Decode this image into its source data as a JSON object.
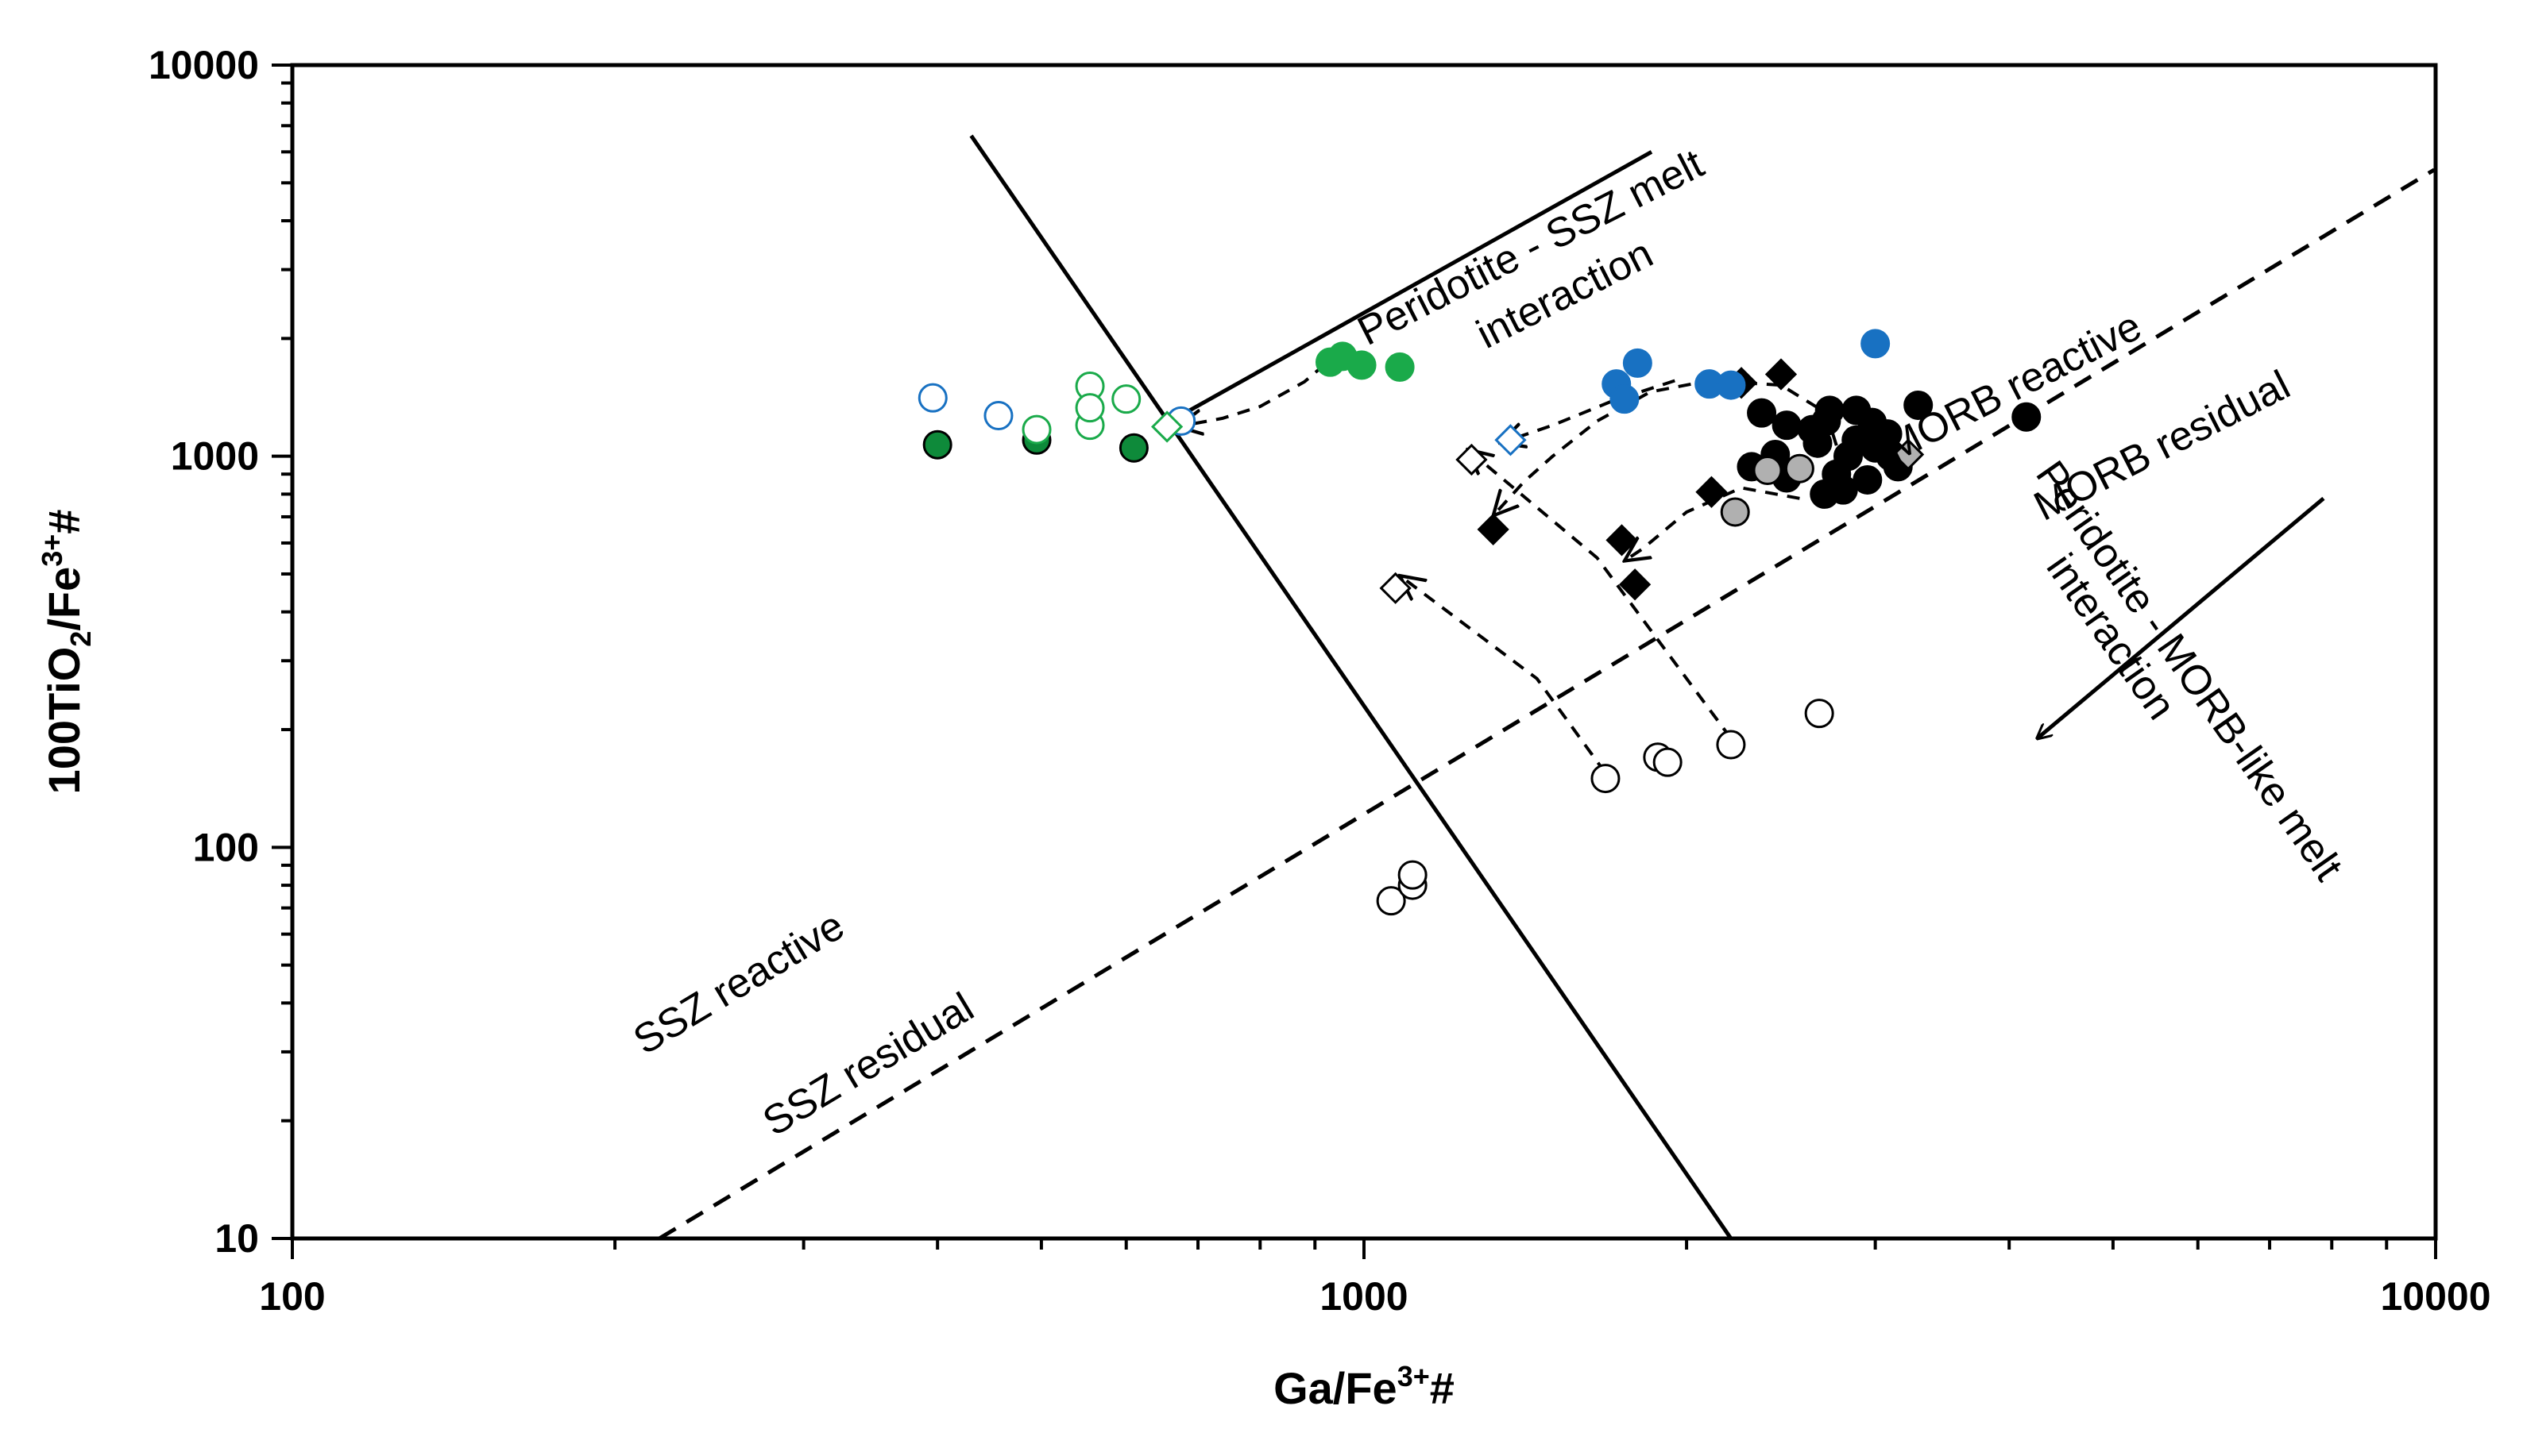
{
  "chart_data": {
    "type": "scatter",
    "xscale": "log",
    "yscale": "log",
    "xlim": [
      100,
      10000
    ],
    "ylim": [
      10,
      10000
    ],
    "xlabel": {
      "base": "Ga/Fe",
      "sup": "3+",
      "tail": "#"
    },
    "ylabel": {
      "base": "100TiO",
      "sub": "2",
      "mid": "/Fe",
      "sup": "3+",
      "tail": "#"
    },
    "xticks": [
      {
        "value": 100,
        "label": "100"
      },
      {
        "value": 1000,
        "label": "1000"
      },
      {
        "value": 10000,
        "label": "10000"
      }
    ],
    "yticks": [
      {
        "value": 10,
        "label": "10"
      },
      {
        "value": 100,
        "label": "100"
      },
      {
        "value": 1000,
        "label": "1000"
      },
      {
        "value": 10000,
        "label": "10000"
      }
    ],
    "colors": {
      "black": "#000000",
      "green": "#1aaa4a",
      "dark_green": "#0e8a3a",
      "blue": "#1871c2",
      "gray": "#b0b0b0",
      "white": "#ffffff"
    },
    "boundaries": [
      {
        "name": "ssz-morb-boundary",
        "style": "solid",
        "x": [
          430,
          2200
        ],
        "y": [
          6600,
          10
        ]
      },
      {
        "name": "reactive-residual-boundary",
        "style": "dashed",
        "x": [
          220,
          9970
        ],
        "y": [
          10,
          5400
        ]
      }
    ],
    "arrows": [
      {
        "name": "ssz-melt-interaction-arrow",
        "style": "solid",
        "x": [
          1855,
          660
        ],
        "y": [
          6000,
          1230
        ]
      },
      {
        "name": "morb-melt-interaction-arrow",
        "style": "solid",
        "x": [
          7860,
          4250
        ],
        "y": [
          780,
          190
        ]
      }
    ],
    "paths": [
      {
        "name": "green-to-open-diamond-path",
        "points": [
          [
            920,
            1720
          ],
          [
            880,
            1550
          ],
          [
            800,
            1340
          ],
          [
            738,
            1250
          ],
          [
            670,
            1190
          ]
        ]
      },
      {
        "name": "blue-to-blue-diamond-path",
        "points": [
          [
            1950,
            1560
          ],
          [
            1700,
            1380
          ],
          [
            1500,
            1200
          ],
          [
            1340,
            1080
          ]
        ]
      },
      {
        "name": "upper-curved-path",
        "points": [
          [
            2800,
            940
          ],
          [
            2700,
            1290
          ],
          [
            2450,
            1520
          ],
          [
            2100,
            1560
          ],
          [
            1850,
            1460
          ],
          [
            1650,
            1230
          ],
          [
            1500,
            1000
          ],
          [
            1410,
            860
          ],
          [
            1320,
            705
          ]
        ]
      },
      {
        "name": "inner-curved-path",
        "points": [
          [
            2550,
            780
          ],
          [
            2250,
            830
          ],
          [
            2000,
            720
          ],
          [
            1820,
            580
          ],
          [
            1750,
            540
          ]
        ]
      },
      {
        "name": "open-circle-to-diamond-path",
        "points": [
          [
            2200,
            190
          ],
          [
            1650,
            550
          ],
          [
            1250,
            1040
          ]
        ]
      },
      {
        "name": "lower-open-circle-path",
        "points": [
          [
            1680,
            155
          ],
          [
            1450,
            270
          ],
          [
            1080,
            495
          ]
        ]
      }
    ],
    "series": [
      {
        "name": "black filled circles",
        "marker": "circle",
        "fill": "#000000",
        "stroke": "#000000",
        "points": [
          [
            2350,
            1290
          ],
          [
            2480,
            1200
          ],
          [
            2300,
            940
          ],
          [
            2480,
            880
          ],
          [
            2420,
            1010
          ],
          [
            2650,
            1080
          ],
          [
            2700,
            1230
          ],
          [
            2720,
            1310
          ],
          [
            2880,
            1310
          ],
          [
            2880,
            1100
          ],
          [
            2830,
            1000
          ],
          [
            2980,
            1220
          ],
          [
            3000,
            1050
          ],
          [
            3080,
            1140
          ],
          [
            3150,
            940
          ],
          [
            3290,
            1350
          ],
          [
            2800,
            820
          ],
          [
            2760,
            900
          ],
          [
            2690,
            800
          ],
          [
            2950,
            870
          ],
          [
            2620,
            1170
          ],
          [
            3100,
            1000
          ],
          [
            4150,
            1260
          ]
        ]
      },
      {
        "name": "black filled diamonds",
        "marker": "diamond",
        "fill": "#000000",
        "stroke": "#000000",
        "points": [
          [
            2450,
            1620
          ],
          [
            2250,
            1540
          ],
          [
            1320,
            650
          ],
          [
            1740,
            610
          ],
          [
            1790,
            470
          ],
          [
            2110,
            810
          ]
        ]
      },
      {
        "name": "gray filled circles",
        "marker": "circle",
        "fill": "#b0b0b0",
        "stroke": "#000000",
        "points": [
          [
            2380,
            920
          ],
          [
            2220,
            720
          ],
          [
            2550,
            930
          ]
        ]
      },
      {
        "name": "gray filled diamonds",
        "marker": "diamond",
        "fill": "#b0b0b0",
        "stroke": "#000000",
        "points": [
          [
            3220,
            1010
          ]
        ]
      },
      {
        "name": "open circles",
        "marker": "circle",
        "fill": "#ffffff",
        "stroke": "#000000",
        "points": [
          [
            2200,
            183
          ],
          [
            2660,
            220
          ],
          [
            1680,
            150
          ],
          [
            1880,
            170
          ],
          [
            1920,
            165
          ],
          [
            1060,
            73
          ],
          [
            1110,
            80
          ],
          [
            1110,
            85
          ]
        ]
      },
      {
        "name": "open diamonds",
        "marker": "diamond",
        "fill": "#ffffff",
        "stroke": "#000000",
        "points": [
          [
            1260,
            980
          ],
          [
            1070,
            460
          ]
        ]
      },
      {
        "name": "blue filled circles",
        "marker": "circle",
        "fill": "#1871c2",
        "stroke": "#1871c2",
        "points": [
          [
            1720,
            1530
          ],
          [
            1750,
            1400
          ],
          [
            1800,
            1730
          ],
          [
            2100,
            1530
          ],
          [
            2200,
            1520
          ],
          [
            3000,
            1940
          ]
        ]
      },
      {
        "name": "blue open circles",
        "marker": "circle",
        "fill": "#ffffff",
        "stroke": "#1871c2",
        "points": [
          [
            396,
            1410
          ],
          [
            456,
            1270
          ],
          [
            675,
            1230
          ]
        ]
      },
      {
        "name": "blue open diamonds",
        "marker": "diamond",
        "fill": "#ffffff",
        "stroke": "#1871c2",
        "points": [
          [
            1370,
            1100
          ]
        ]
      },
      {
        "name": "green filled circles",
        "marker": "circle",
        "fill": "#1aaa4a",
        "stroke": "#1aaa4a",
        "points": [
          [
            930,
            1740
          ],
          [
            955,
            1800
          ],
          [
            995,
            1710
          ],
          [
            1080,
            1690
          ]
        ]
      },
      {
        "name": "dark green filled circles",
        "marker": "circle",
        "fill": "#0e8a3a",
        "stroke": "#000000",
        "points": [
          [
            400,
            1070
          ],
          [
            495,
            1100
          ],
          [
            610,
            1050
          ]
        ]
      },
      {
        "name": "green open circles",
        "marker": "circle",
        "fill": "#ffffff",
        "stroke": "#1aaa4a",
        "points": [
          [
            495,
            1170
          ],
          [
            555,
            1510
          ],
          [
            555,
            1200
          ],
          [
            555,
            1330
          ],
          [
            600,
            1400
          ]
        ]
      },
      {
        "name": "green open diamonds",
        "marker": "diamond",
        "fill": "#ffffff",
        "stroke": "#1aaa4a",
        "points": [
          [
            655,
            1190
          ]
        ]
      }
    ],
    "annotations": [
      {
        "name": "annot-ssz-melt-1",
        "text": "Peridotite - SSZ melt",
        "x": 1450,
        "y": 3180,
        "angle": -27
      },
      {
        "name": "annot-ssz-melt-2",
        "text": "interaction",
        "x": 1560,
        "y": 2420,
        "angle": -27
      },
      {
        "name": "annot-morb-reactive",
        "text": "MORB reactive",
        "x": 4090,
        "y": 1400,
        "angle": -27
      },
      {
        "name": "annot-morb-residual",
        "text": "MORB residual",
        "x": 5630,
        "y": 990,
        "angle": -27
      },
      {
        "name": "annot-morb-melt-1",
        "text": "Peridotite - MORB-like melt",
        "x": 5750,
        "y": 270,
        "angle": 55
      },
      {
        "name": "annot-morb-melt-2",
        "text": "interaction",
        "x": 4860,
        "y": 330,
        "angle": 55
      },
      {
        "name": "annot-ssz-reactive",
        "text": "SSZ reactive",
        "x": 265,
        "y": 42,
        "angle": -31
      },
      {
        "name": "annot-ssz-residual",
        "text": "SSZ residual",
        "x": 350,
        "y": 26,
        "angle": -31
      }
    ]
  }
}
